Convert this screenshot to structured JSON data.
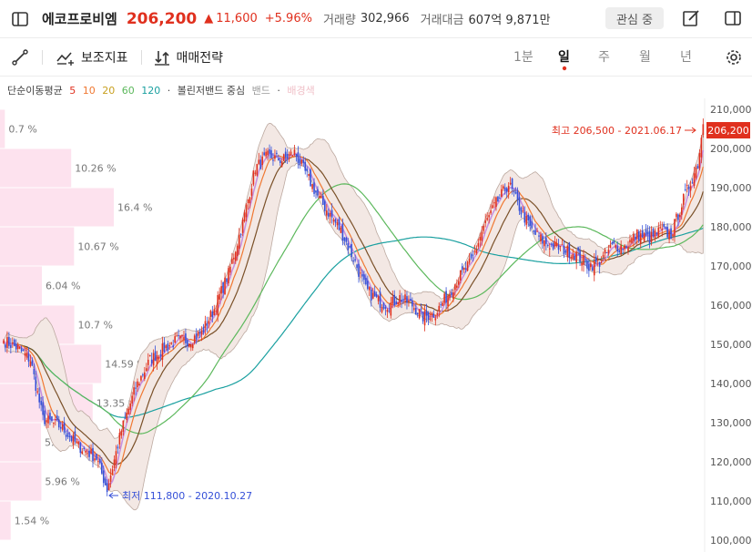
{
  "header": {
    "stock_name": "에코프로비엠",
    "price": "206,200",
    "change_arrow": "▲",
    "change": "11,600",
    "change_pct": "+5.96%",
    "volume_label": "거래량",
    "volume": "302,966",
    "amount_label": "거래대금",
    "amount": "607억 9,871만",
    "watch_label": "관심 중"
  },
  "toolbar": {
    "indicators_label": "보조지표",
    "strategy_label": "매매전략",
    "periods": [
      "1분",
      "일",
      "주",
      "월",
      "년"
    ],
    "active_period": "일"
  },
  "legend": {
    "sma_label": "단순이동평균",
    "ma5": "5",
    "ma10": "10",
    "ma20": "20",
    "ma60": "60",
    "ma120": "120",
    "bullet": "·",
    "bb_center": "볼린저밴드 중심",
    "bb_band": "밴드",
    "bb_dot": "·",
    "bb_fill": "배경색"
  },
  "colors": {
    "up": "#e0301e",
    "down": "#3550d8",
    "ma5": "#e0301e",
    "ma10": "#f07832",
    "ma20": "#7a5028",
    "ma60": "#5cb85c",
    "ma120": "#1aa0a0",
    "bb_center": "#c890e0",
    "bb_fill": "#f3e8e4",
    "profile": "#fde2ee"
  },
  "chart_data": {
    "type": "candlestick",
    "y_axis_ticks": [
      "210,000",
      "200,000",
      "190,000",
      "180,000",
      "170,000",
      "160,000",
      "150,000",
      "140,000",
      "130,000",
      "120,000",
      "110,000",
      "100,000"
    ],
    "ylim": [
      100000,
      210000
    ],
    "high_annotation": "최고 206,500 - 2021.06.17",
    "low_annotation": "최저 111,800 - 2020.10.27",
    "current_price_label": "206,200",
    "volume_profile": [
      {
        "label": "0.7 %",
        "price": 205000,
        "value": 0.7
      },
      {
        "label": "10.26 %",
        "price": 195000,
        "value": 10.26
      },
      {
        "label": "16.4 %",
        "price": 185000,
        "value": 16.4
      },
      {
        "label": "10.67 %",
        "price": 175000,
        "value": 10.67
      },
      {
        "label": "6.04 %",
        "price": 165000,
        "value": 6.04
      },
      {
        "label": "10.7 %",
        "price": 155000,
        "value": 10.7
      },
      {
        "label": "14.59 %",
        "price": 145000,
        "value": 14.59
      },
      {
        "label": "13.35 %",
        "price": 135000,
        "value": 13.35
      },
      {
        "label": "5.91 %",
        "price": 125000,
        "value": 5.91
      },
      {
        "label": "5.96 %",
        "price": 115000,
        "value": 5.96
      },
      {
        "label": "1.54 %",
        "price": 105000,
        "value": 1.54
      }
    ],
    "keypoints": [
      [
        0,
        151000
      ],
      [
        8,
        149000
      ],
      [
        15,
        146000
      ],
      [
        22,
        131000
      ],
      [
        32,
        129000
      ],
      [
        42,
        124000
      ],
      [
        52,
        121000
      ],
      [
        58,
        113000
      ],
      [
        66,
        128000
      ],
      [
        74,
        139000
      ],
      [
        82,
        146000
      ],
      [
        90,
        149000
      ],
      [
        97,
        151000
      ],
      [
        104,
        151000
      ],
      [
        111,
        153000
      ],
      [
        118,
        159000
      ],
      [
        126,
        168000
      ],
      [
        134,
        181000
      ],
      [
        141,
        195000
      ],
      [
        148,
        198000
      ],
      [
        156,
        197000
      ],
      [
        163,
        199000
      ],
      [
        170,
        193000
      ],
      [
        177,
        187000
      ],
      [
        183,
        183000
      ],
      [
        189,
        179000
      ],
      [
        196,
        172000
      ],
      [
        203,
        164000
      ],
      [
        210,
        161000
      ],
      [
        216,
        160000
      ],
      [
        222,
        162000
      ],
      [
        229,
        160000
      ],
      [
        235,
        157000
      ],
      [
        242,
        158000
      ],
      [
        248,
        162000
      ],
      [
        255,
        167000
      ],
      [
        262,
        171000
      ],
      [
        269,
        180000
      ],
      [
        276,
        186000
      ],
      [
        283,
        191000
      ],
      [
        290,
        184000
      ],
      [
        296,
        179000
      ],
      [
        303,
        176000
      ],
      [
        309,
        175000
      ],
      [
        315,
        174000
      ],
      [
        321,
        173000
      ],
      [
        328,
        170000
      ],
      [
        334,
        171000
      ],
      [
        341,
        175000
      ],
      [
        348,
        175000
      ],
      [
        355,
        178000
      ],
      [
        362,
        177000
      ],
      [
        368,
        179000
      ],
      [
        374,
        178000
      ],
      [
        381,
        187000
      ],
      [
        389,
        196000
      ],
      [
        392,
        206200
      ]
    ]
  }
}
